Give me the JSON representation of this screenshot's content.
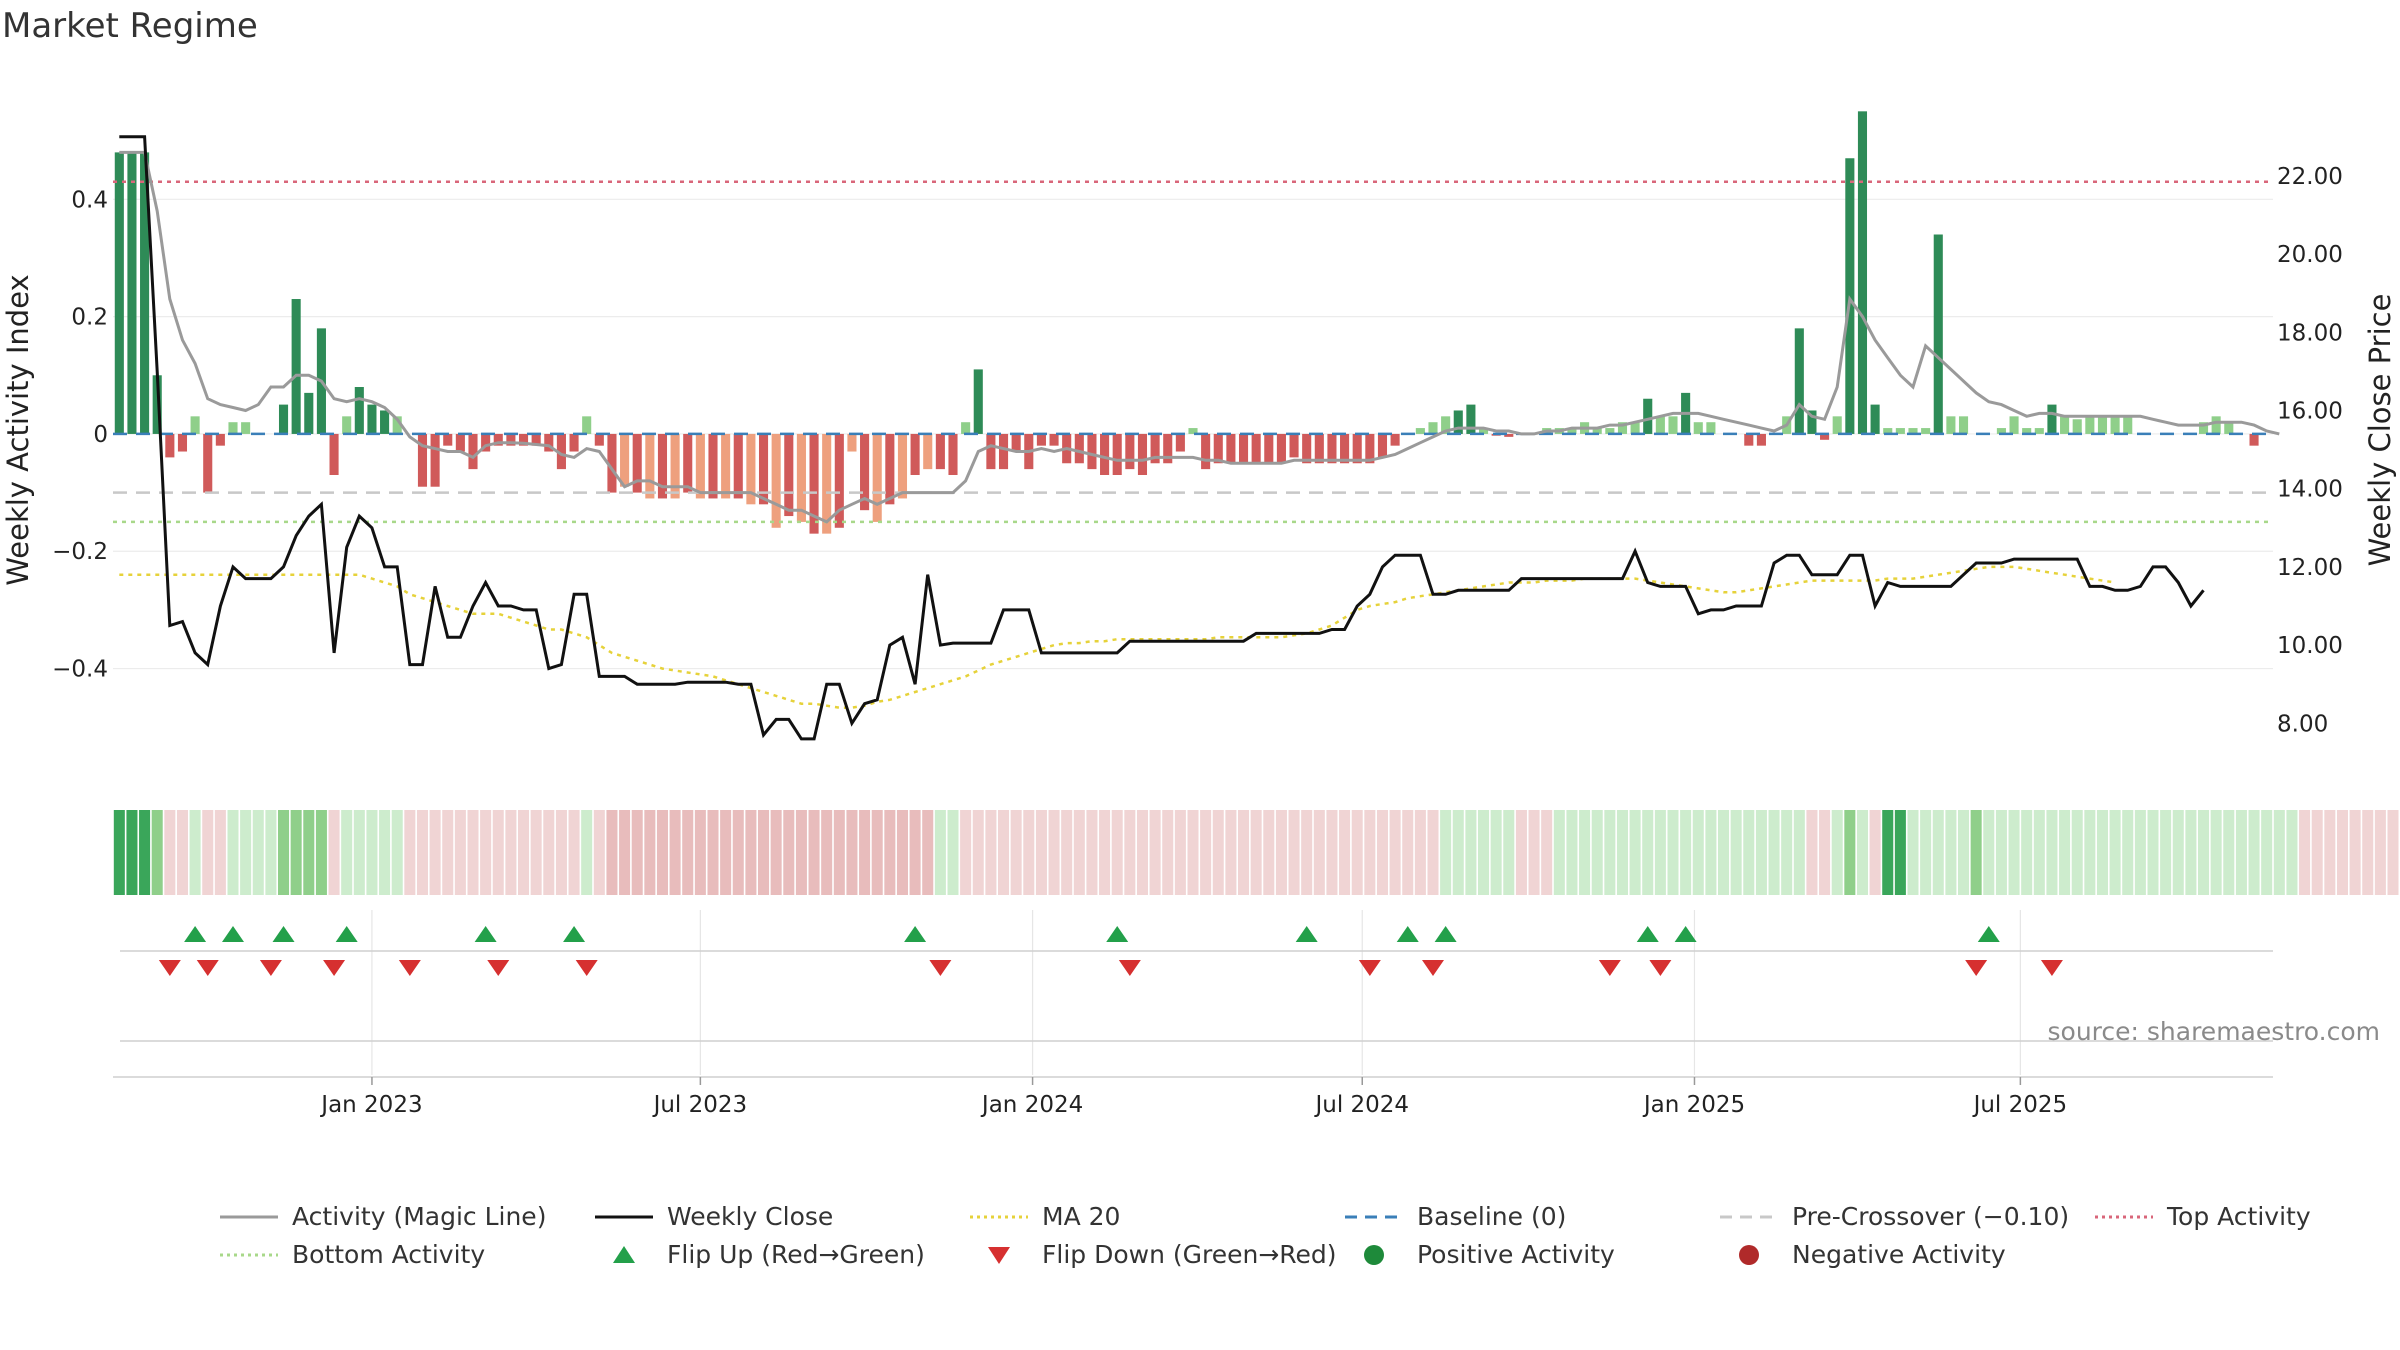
{
  "title": "Market Regime",
  "source": "source: sharemaestro.com",
  "chart_data": {
    "type": "bar",
    "title": "Market Regime",
    "ylabel_left": "Weekly Activity Index",
    "ylabel_right": "Weekly Close Price",
    "ylim_left": [
      -0.59,
      0.6
    ],
    "ylim_right": [
      6.55,
      24.4
    ],
    "yticks_left": [
      {
        "value": 0.4,
        "label": "0.4"
      },
      {
        "value": 0.2,
        "label": "0.2"
      },
      {
        "value": 0,
        "label": "0"
      },
      {
        "value": -0.2,
        "label": "−0.2"
      },
      {
        "value": -0.4,
        "label": "−0.4"
      }
    ],
    "yticks_right": [
      {
        "value": 22,
        "label": "22.00"
      },
      {
        "value": 20,
        "label": "20.00"
      },
      {
        "value": 18,
        "label": "18.00"
      },
      {
        "value": 16,
        "label": "16.00"
      },
      {
        "value": 14,
        "label": "14.00"
      },
      {
        "value": 12,
        "label": "12.00"
      },
      {
        "value": 10,
        "label": "10.00"
      },
      {
        "value": 8,
        "label": "8.00"
      }
    ],
    "xticks": [
      {
        "week": 20.5,
        "label": "Jan 2023"
      },
      {
        "week": 46.5,
        "label": "Jul 2023"
      },
      {
        "week": 72.8,
        "label": "Jan 2024"
      },
      {
        "week": 98.9,
        "label": "Jul 2024"
      },
      {
        "week": 125.2,
        "label": "Jan 2025"
      },
      {
        "week": 151,
        "label": "Jul 2025"
      }
    ],
    "reference_lines": {
      "baseline": 0,
      "pre_crossover": -0.1,
      "top_activity": 0.43,
      "bottom_activity": -0.15
    },
    "activity_index": [
      0.48,
      0.48,
      0.48,
      0.1,
      -0.04,
      -0.03,
      0.03,
      -0.1,
      -0.02,
      0.02,
      0.02,
      0.0,
      0.0,
      0.05,
      0.23,
      0.07,
      0.18,
      -0.07,
      0.03,
      0.08,
      0.05,
      0.04,
      0.03,
      0.0,
      -0.09,
      -0.09,
      -0.02,
      -0.03,
      -0.06,
      -0.03,
      -0.02,
      -0.02,
      -0.02,
      -0.02,
      -0.03,
      -0.06,
      -0.03,
      0.03,
      -0.02,
      -0.1,
      -0.09,
      -0.1,
      -0.11,
      -0.11,
      -0.11,
      -0.1,
      -0.11,
      -0.11,
      -0.11,
      -0.11,
      -0.12,
      -0.12,
      -0.16,
      -0.14,
      -0.15,
      -0.17,
      -0.17,
      -0.16,
      -0.03,
      -0.13,
      -0.15,
      -0.12,
      -0.11,
      -0.07,
      -0.06,
      -0.06,
      -0.07,
      0.02,
      0.11,
      -0.06,
      -0.06,
      -0.03,
      -0.06,
      -0.02,
      -0.02,
      -0.05,
      -0.05,
      -0.06,
      -0.07,
      -0.07,
      -0.06,
      -0.07,
      -0.05,
      -0.05,
      -0.03,
      0.01,
      -0.06,
      -0.05,
      -0.05,
      -0.05,
      -0.05,
      -0.05,
      -0.05,
      -0.04,
      -0.05,
      -0.05,
      -0.05,
      -0.05,
      -0.05,
      -0.05,
      -0.04,
      -0.02,
      0.0,
      0.01,
      0.02,
      0.03,
      0.04,
      0.05,
      0.01,
      -0.003,
      -0.005,
      0.0,
      0.0,
      0.01,
      0.01,
      0.01,
      0.02,
      0.01,
      0.01,
      0.02,
      0.02,
      0.06,
      0.03,
      0.03,
      0.07,
      0.02,
      0.02,
      0.0,
      0.0,
      -0.02,
      -0.02,
      0.0,
      0.03,
      0.18,
      0.04,
      -0.01,
      0.03,
      0.47,
      0.55,
      0.05,
      0.01,
      0.01,
      0.01,
      0.01,
      0.34,
      0.03,
      0.03,
      0.0,
      0.0,
      0.01,
      0.03,
      0.01,
      0.01,
      0.05,
      0.03,
      0.025,
      0.03,
      0.03,
      0.03,
      0.03,
      0.0,
      0.0,
      0.0,
      0.0,
      0.0,
      0.02,
      0.03,
      0.02,
      0.0,
      -0.02,
      0.0
    ],
    "activity_magic_line": [
      0.48,
      0.48,
      0.48,
      0.38,
      0.23,
      0.16,
      0.12,
      0.06,
      0.05,
      0.045,
      0.04,
      0.05,
      0.08,
      0.08,
      0.1,
      0.1,
      0.09,
      0.06,
      0.055,
      0.06,
      0.055,
      0.045,
      0.025,
      -0.005,
      -0.02,
      -0.025,
      -0.03,
      -0.03,
      -0.04,
      -0.02,
      -0.015,
      -0.015,
      -0.016,
      -0.018,
      -0.02,
      -0.035,
      -0.04,
      -0.025,
      -0.03,
      -0.06,
      -0.09,
      -0.08,
      -0.08,
      -0.09,
      -0.09,
      -0.09,
      -0.1,
      -0.1,
      -0.1,
      -0.1,
      -0.1,
      -0.11,
      -0.12,
      -0.13,
      -0.13,
      -0.14,
      -0.15,
      -0.13,
      -0.12,
      -0.11,
      -0.12,
      -0.11,
      -0.1,
      -0.1,
      -0.1,
      -0.1,
      -0.1,
      -0.08,
      -0.03,
      -0.02,
      -0.025,
      -0.03,
      -0.03,
      -0.025,
      -0.03,
      -0.025,
      -0.03,
      -0.035,
      -0.04,
      -0.045,
      -0.045,
      -0.045,
      -0.04,
      -0.04,
      -0.04,
      -0.04,
      -0.045,
      -0.045,
      -0.05,
      -0.05,
      -0.05,
      -0.05,
      -0.05,
      -0.045,
      -0.045,
      -0.045,
      -0.045,
      -0.045,
      -0.045,
      -0.045,
      -0.04,
      -0.035,
      -0.025,
      -0.015,
      -0.005,
      0.005,
      0.01,
      0.01,
      0.01,
      0.005,
      0.005,
      0.0,
      0.0,
      0.005,
      0.005,
      0.01,
      0.01,
      0.01,
      0.015,
      0.015,
      0.02,
      0.025,
      0.03,
      0.035,
      0.035,
      0.035,
      0.03,
      0.025,
      0.02,
      0.015,
      0.01,
      0.005,
      0.015,
      0.05,
      0.03,
      0.025,
      0.08,
      0.23,
      0.2,
      0.16,
      0.13,
      0.1,
      0.08,
      0.15,
      0.13,
      0.11,
      0.09,
      0.07,
      0.055,
      0.05,
      0.04,
      0.03,
      0.035,
      0.035,
      0.03,
      0.03,
      0.03,
      0.03,
      0.03,
      0.03,
      0.03,
      0.025,
      0.02,
      0.015,
      0.015,
      0.015,
      0.02,
      0.02,
      0.02,
      0.015,
      0.005,
      0.0
    ],
    "weekly_close": [
      23.0,
      23.0,
      23.0,
      17.0,
      10.5,
      10.6,
      9.8,
      9.5,
      11.0,
      12.0,
      11.7,
      11.7,
      11.7,
      12.0,
      12.8,
      13.3,
      13.6,
      9.8,
      12.5,
      13.3,
      13.0,
      12.0,
      12.0,
      9.5,
      9.5,
      11.5,
      10.2,
      10.2,
      11.0,
      11.6,
      11.0,
      11.0,
      10.9,
      10.9,
      9.4,
      9.5,
      11.3,
      11.3,
      9.2,
      9.2,
      9.2,
      9.0,
      9.0,
      9.0,
      9.0,
      9.05,
      9.05,
      9.05,
      9.05,
      9.0,
      9.0,
      7.7,
      8.1,
      8.1,
      7.6,
      7.6,
      9.0,
      9.0,
      8.0,
      8.5,
      8.6,
      10.0,
      10.2,
      9.0,
      11.8,
      10.0,
      10.05,
      10.05,
      10.05,
      10.05,
      10.9,
      10.9,
      10.9,
      9.8,
      9.8,
      9.8,
      9.8,
      9.8,
      9.8,
      9.8,
      10.1,
      10.1,
      10.1,
      10.1,
      10.1,
      10.1,
      10.1,
      10.1,
      10.1,
      10.1,
      10.3,
      10.3,
      10.3,
      10.3,
      10.3,
      10.3,
      10.4,
      10.4,
      11.0,
      11.3,
      12.0,
      12.3,
      12.3,
      12.3,
      11.3,
      11.3,
      11.4,
      11.4,
      11.4,
      11.4,
      11.4,
      11.7,
      11.7,
      11.7,
      11.7,
      11.7,
      11.7,
      11.7,
      11.7,
      11.7,
      12.4,
      11.6,
      11.5,
      11.5,
      11.5,
      10.8,
      10.9,
      10.9,
      11.0,
      11.0,
      11.0,
      12.1,
      12.3,
      12.3,
      11.8,
      11.8,
      11.8,
      12.3,
      12.3,
      11.0,
      11.6,
      11.5,
      11.5,
      11.5,
      11.5,
      11.5,
      11.8,
      12.1,
      12.1,
      12.1,
      12.2,
      12.2,
      12.2,
      12.2,
      12.2,
      12.2,
      11.5,
      11.5,
      11.4,
      11.4,
      11.5,
      12.0,
      12.0,
      11.6,
      11.0,
      11.4
    ],
    "ma20": [
      11.8,
      11.8,
      11.8,
      11.8,
      11.8,
      11.8,
      11.8,
      11.8,
      11.8,
      11.8,
      11.8,
      11.8,
      11.8,
      11.8,
      11.8,
      11.8,
      11.8,
      11.8,
      11.8,
      11.8,
      11.7,
      11.6,
      11.5,
      11.3,
      11.2,
      11.1,
      11.0,
      10.9,
      10.8,
      10.8,
      10.8,
      10.7,
      10.6,
      10.5,
      10.4,
      10.4,
      10.3,
      10.2,
      10.0,
      9.8,
      9.7,
      9.6,
      9.5,
      9.4,
      9.35,
      9.3,
      9.25,
      9.2,
      9.1,
      9.0,
      8.9,
      8.8,
      8.7,
      8.6,
      8.5,
      8.5,
      8.45,
      8.4,
      8.4,
      8.45,
      8.55,
      8.6,
      8.7,
      8.8,
      8.9,
      9.0,
      9.1,
      9.2,
      9.35,
      9.5,
      9.6,
      9.7,
      9.8,
      9.9,
      10.0,
      10.05,
      10.05,
      10.1,
      10.1,
      10.15,
      10.15,
      10.15,
      10.15,
      10.15,
      10.15,
      10.15,
      10.15,
      10.2,
      10.2,
      10.2,
      10.2,
      10.2,
      10.2,
      10.25,
      10.3,
      10.4,
      10.5,
      10.7,
      10.9,
      11.0,
      11.05,
      11.1,
      11.2,
      11.25,
      11.3,
      11.35,
      11.4,
      11.45,
      11.5,
      11.55,
      11.6,
      11.6,
      11.6,
      11.65,
      11.65,
      11.65,
      11.7,
      11.7,
      11.7,
      11.7,
      11.7,
      11.65,
      11.6,
      11.55,
      11.5,
      11.45,
      11.4,
      11.35,
      11.35,
      11.4,
      11.45,
      11.5,
      11.55,
      11.6,
      11.65,
      11.65,
      11.65,
      11.65,
      11.65,
      11.65,
      11.7,
      11.7,
      11.7,
      11.75,
      11.8,
      11.85,
      11.9,
      11.95,
      12.0,
      12.0,
      12.0,
      11.95,
      11.9,
      11.85,
      11.8,
      11.75,
      11.7,
      11.65,
      11.6
    ],
    "regime_strip": [
      "G3",
      "G3",
      "G3",
      "G2",
      "R1",
      "R1",
      "G1",
      "R1",
      "R1",
      "G1",
      "G1",
      "G1",
      "G1",
      "G2",
      "G2",
      "G2",
      "G2",
      "R1",
      "G1",
      "G1",
      "G1",
      "G1",
      "G1",
      "R1",
      "R1",
      "R1",
      "R1",
      "R1",
      "R1",
      "R1",
      "R1",
      "R1",
      "R1",
      "R1",
      "R1",
      "R1",
      "R1",
      "G1",
      "R1",
      "R2",
      "R2",
      "R2",
      "R2",
      "R2",
      "R2",
      "R2",
      "R2",
      "R2",
      "R2",
      "R2",
      "R2",
      "R2",
      "R2",
      "R2",
      "R2",
      "R2",
      "R2",
      "R2",
      "R2",
      "R2",
      "R2",
      "R2",
      "R2",
      "R2",
      "R2",
      "G1",
      "G1",
      "R1",
      "R1",
      "R1",
      "R1",
      "R1",
      "R1",
      "R1",
      "R1",
      "R1",
      "R1",
      "R1",
      "R1",
      "R1",
      "R1",
      "R1",
      "R1",
      "R1",
      "R1",
      "R1",
      "R1",
      "R1",
      "R1",
      "R1",
      "R1",
      "R1",
      "R1",
      "R1",
      "R1",
      "R1",
      "R1",
      "R1",
      "R1",
      "R1",
      "R1",
      "R1",
      "R1",
      "R1",
      "R1",
      "G1",
      "G1",
      "G1",
      "G1",
      "G1",
      "G1",
      "R1",
      "R1",
      "R1",
      "G1",
      "G1",
      "G1",
      "G1",
      "G1",
      "G1",
      "G1",
      "G1",
      "G1",
      "G1",
      "G1",
      "G1",
      "G1",
      "G1",
      "G1",
      "G1",
      "G1",
      "G1",
      "G1",
      "G1",
      "R1",
      "R1",
      "G1",
      "G2",
      "G1",
      "R1",
      "G3",
      "G3",
      "G1",
      "G1",
      "G1",
      "G1",
      "G1",
      "G2",
      "G1",
      "G1",
      "G1",
      "G1",
      "G1",
      "G1",
      "G1",
      "G1",
      "G1",
      "G1",
      "G1",
      "G1",
      "G1",
      "G1",
      "G1",
      "G1",
      "G1",
      "G1",
      "G1",
      "G1",
      "G1",
      "G1",
      "G1",
      "G1",
      "G1",
      "R1",
      "R1",
      "R1",
      "R1",
      "R1",
      "R1",
      "R1",
      "R1"
    ],
    "flip_up_weeks": [
      6,
      9,
      13,
      18,
      29,
      36,
      63,
      79,
      94,
      102,
      105,
      121,
      124,
      148
    ],
    "flip_down_weeks": [
      4,
      7,
      12,
      17,
      23,
      30,
      37,
      65,
      80,
      99,
      104,
      118,
      122,
      147,
      153
    ]
  },
  "legend": [
    {
      "name": "legend-activity-magic-line",
      "label": "Activity (Magic Line)",
      "kind": "line",
      "color": "#9a9a9a",
      "dash": ""
    },
    {
      "name": "legend-weekly-close",
      "label": "Weekly Close",
      "kind": "line",
      "color": "#111111",
      "dash": ""
    },
    {
      "name": "legend-ma20",
      "label": "MA 20",
      "kind": "line",
      "color": "#e6d23a",
      "dash": "3 4"
    },
    {
      "name": "legend-baseline",
      "label": "Baseline (0)",
      "kind": "line",
      "color": "#3a7fb8",
      "dash": "12 8"
    },
    {
      "name": "legend-pre-crossover",
      "label": "Pre-Crossover (−0.10)",
      "kind": "line",
      "color": "#c8c8c8",
      "dash": "12 8"
    },
    {
      "name": "legend-top-activity",
      "label": "Top Activity",
      "kind": "line",
      "color": "#d9667a",
      "dash": "3 4"
    },
    {
      "name": "legend-bottom-activity",
      "label": "Bottom Activity",
      "kind": "line",
      "color": "#a8d88a",
      "dash": "3 4"
    },
    {
      "name": "legend-flip-up",
      "label": "Flip Up (Red→Green)",
      "kind": "tri-up",
      "color": "#23a04a",
      "dash": ""
    },
    {
      "name": "legend-flip-down",
      "label": "Flip Down (Green→Red)",
      "kind": "tri-down",
      "color": "#d63030",
      "dash": ""
    },
    {
      "name": "legend-positive-activity",
      "label": "Positive Activity",
      "kind": "dot",
      "color": "#1e8a3a",
      "dash": ""
    },
    {
      "name": "legend-negative-activity",
      "label": "Negative Activity",
      "kind": "dot",
      "color": "#b02a2a",
      "dash": ""
    }
  ],
  "colors": {
    "pos_strong": "#2e8b57",
    "pos_light": "#8fcf8a",
    "neg_strong": "#d05a5a",
    "neg_light": "#eea07e",
    "close": "#111111",
    "magic": "#9a9a9a",
    "ma20": "#e6d23a",
    "baseline": "#3a7fb8",
    "pre_crossover": "#c8c8c8",
    "top": "#d9667a",
    "bottom": "#a8d88a",
    "strip": {
      "G3": "#3aa65a",
      "G2": "#8fcf8a",
      "G1": "#cdeccd",
      "R1": "#f0d4d4",
      "R2": "#e8bcbc"
    }
  }
}
